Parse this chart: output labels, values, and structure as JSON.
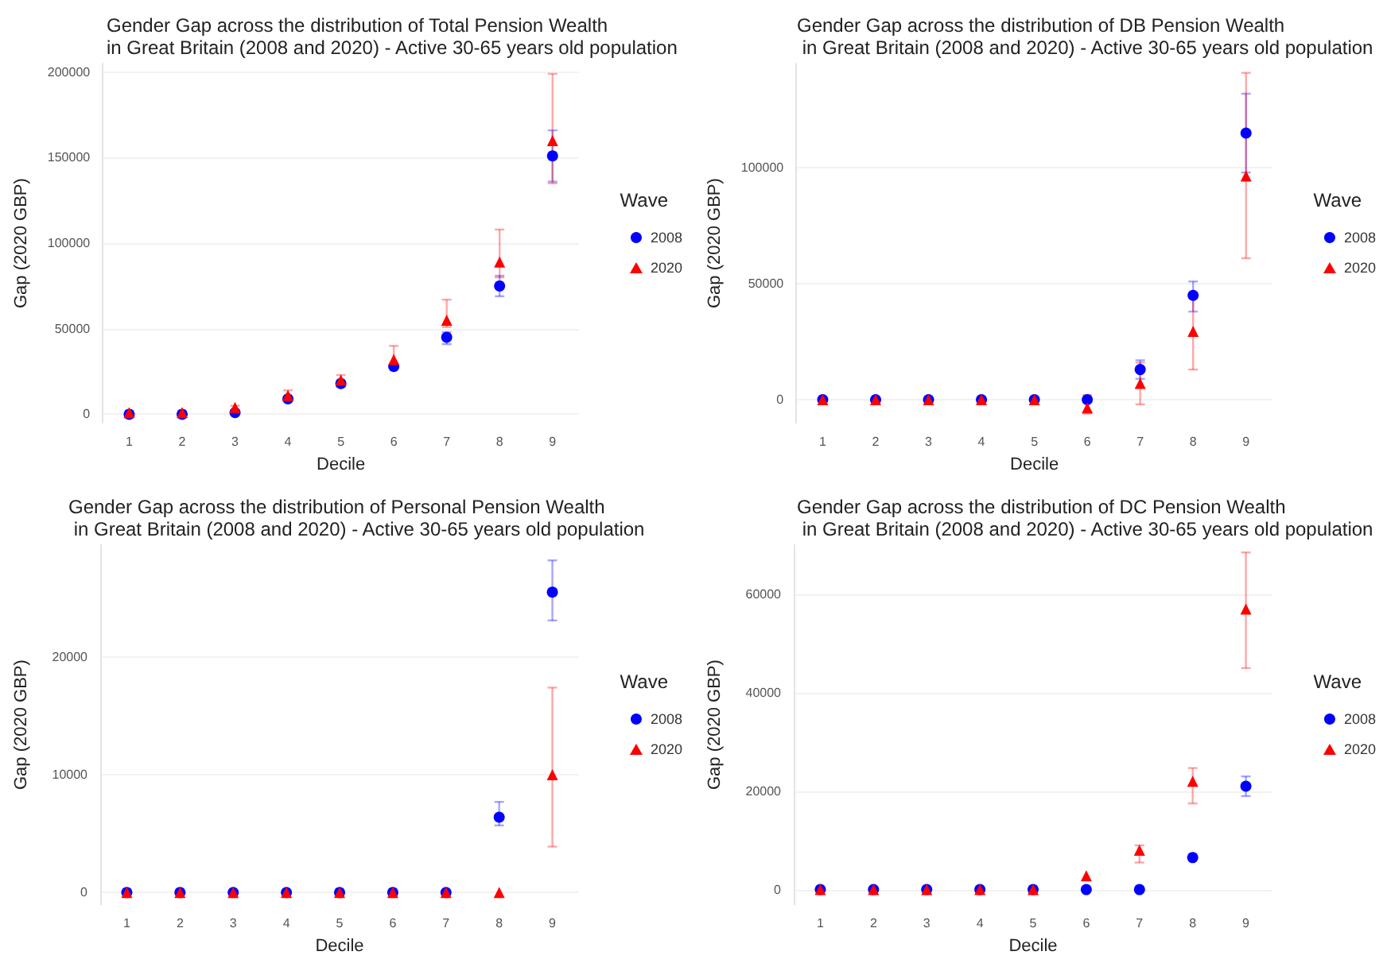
{
  "chart_data": [
    {
      "type": "scatter",
      "title": "Gender Gap across the distribution of Total Pension Wealth\nin Great Britain (2008 and 2020) - Active 30-65 years old population",
      "xlabel": "Decile",
      "ylabel": "Gap (2020 GBP)",
      "legend_title": "Wave",
      "legend": "right",
      "grid": "y",
      "categories": [
        "1",
        "2",
        "3",
        "4",
        "5",
        "6",
        "7",
        "8",
        "9"
      ],
      "ylim": [
        -5000,
        205000
      ],
      "yticks": [
        0,
        50000,
        100000,
        150000,
        200000
      ],
      "series": [
        {
          "name": "2008",
          "color": "#0000ff",
          "marker": "circle",
          "values": [
            0,
            0,
            1000,
            9000,
            18000,
            28000,
            45000,
            75000,
            151000
          ],
          "errors": [
            null,
            null,
            null,
            null,
            null,
            null,
            [
              41000,
              48000
            ],
            [
              69000,
              81000
            ],
            [
              136000,
              166000
            ]
          ]
        },
        {
          "name": "2020",
          "color": "#ff0000",
          "marker": "triangle",
          "values": [
            1000,
            1000,
            4000,
            11000,
            20000,
            32000,
            55000,
            89000,
            160000
          ],
          "errors": [
            null,
            null,
            [
              1500,
              5000
            ],
            [
              8000,
              14000
            ],
            [
              16000,
              23000
            ],
            [
              27000,
              40000
            ],
            [
              51000,
              67000
            ],
            [
              80000,
              108000
            ],
            [
              135000,
              199000
            ]
          ]
        }
      ]
    },
    {
      "type": "scatter",
      "title": "Gender Gap across the distribution of DB Pension Wealth\n in Great Britain (2008 and 2020) - Active 30-65 years old population",
      "xlabel": "Decile",
      "ylabel": "Gap (2020 GBP)",
      "legend_title": "Wave",
      "legend": "right",
      "grid": "y",
      "categories": [
        "1",
        "2",
        "3",
        "4",
        "5",
        "6",
        "7",
        "8",
        "9"
      ],
      "ylim": [
        -10000,
        145000
      ],
      "yticks": [
        0,
        50000,
        100000
      ],
      "series": [
        {
          "name": "2008",
          "color": "#0000ff",
          "marker": "circle",
          "values": [
            0,
            0,
            0,
            0,
            0,
            0,
            13000,
            45000,
            115000
          ],
          "errors": [
            null,
            null,
            null,
            null,
            null,
            null,
            [
              9000,
              17000
            ],
            [
              38000,
              51000
            ],
            [
              98000,
              132000
            ]
          ]
        },
        {
          "name": "2020",
          "color": "#ff0000",
          "marker": "triangle",
          "values": [
            0,
            0,
            0,
            0,
            0,
            -3500,
            7000,
            29500,
            96500
          ],
          "errors": [
            null,
            null,
            null,
            null,
            null,
            [
              -6000,
              2000
            ],
            [
              -2000,
              16000
            ],
            [
              13000,
              46000
            ],
            [
              61000,
              141000
            ]
          ]
        }
      ]
    },
    {
      "type": "scatter",
      "title": "Gender Gap across the distribution of Personal Pension Wealth\n in Great Britain (2008 and 2020) - Active 30-65 years old population",
      "xlabel": "Decile",
      "ylabel": "Gap (2020 GBP)",
      "legend_title": "Wave",
      "legend": "right",
      "grid": "y",
      "categories": [
        "1",
        "2",
        "3",
        "4",
        "5",
        "6",
        "7",
        "8",
        "9"
      ],
      "ylim": [
        -1000,
        29500
      ],
      "yticks": [
        0,
        10000,
        20000
      ],
      "series": [
        {
          "name": "2008",
          "color": "#0000ff",
          "marker": "circle",
          "values": [
            0,
            0,
            0,
            0,
            0,
            0,
            0,
            6400,
            25500
          ],
          "errors": [
            null,
            null,
            null,
            null,
            null,
            null,
            null,
            [
              5700,
              7700
            ],
            [
              23100,
              28200
            ]
          ]
        },
        {
          "name": "2020",
          "color": "#ff0000",
          "marker": "triangle",
          "values": [
            0,
            0,
            0,
            0,
            0,
            0,
            0,
            0,
            10000
          ],
          "errors": [
            null,
            null,
            null,
            null,
            null,
            null,
            null,
            null,
            [
              3900,
              17400
            ]
          ]
        }
      ]
    },
    {
      "type": "scatter",
      "title": "Gender Gap across the distribution of DC Pension Wealth\n in Great Britain (2008 and 2020) - Active 30-65 years old population",
      "xlabel": "Decile",
      "ylabel": "Gap (2020 GBP)",
      "legend_title": "Wave",
      "legend": "right",
      "grid": "y",
      "categories": [
        "1",
        "2",
        "3",
        "4",
        "5",
        "6",
        "7",
        "8",
        "9"
      ],
      "ylim": [
        -3000,
        70000
      ],
      "yticks": [
        0,
        20000,
        40000,
        60000
      ],
      "series": [
        {
          "name": "2008",
          "color": "#0000ff",
          "marker": "circle",
          "values": [
            0,
            0,
            0,
            0,
            0,
            0,
            0,
            6500,
            21000
          ],
          "errors": [
            null,
            null,
            null,
            null,
            null,
            null,
            null,
            null,
            [
              19000,
              23000
            ]
          ]
        },
        {
          "name": "2020",
          "color": "#ff0000",
          "marker": "triangle",
          "values": [
            0,
            0,
            0,
            0,
            0,
            2800,
            8000,
            22000,
            57000
          ],
          "errors": [
            null,
            null,
            null,
            null,
            null,
            null,
            [
              5500,
              9000
            ],
            [
              17500,
              24700
            ],
            [
              45000,
              68500
            ]
          ]
        }
      ]
    }
  ]
}
